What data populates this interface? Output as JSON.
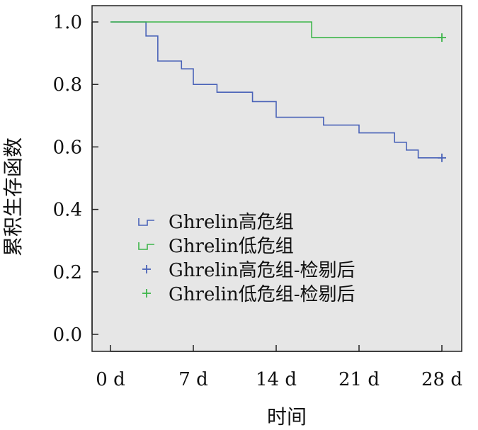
{
  "chart_data": {
    "type": "line",
    "xlabel": "时间",
    "ylabel": "累积生存函数",
    "xlim": [
      0,
      28
    ],
    "ylim": [
      0.0,
      1.0
    ],
    "x_ticks": [
      {
        "value": 0,
        "label": "0 d"
      },
      {
        "value": 7,
        "label": "7 d"
      },
      {
        "value": 14,
        "label": "14 d"
      },
      {
        "value": 21,
        "label": "21 d"
      },
      {
        "value": 28,
        "label": "28 d"
      }
    ],
    "y_ticks": [
      {
        "value": 0.0,
        "label": "0.0"
      },
      {
        "value": 0.2,
        "label": "0.2"
      },
      {
        "value": 0.4,
        "label": "0.4"
      },
      {
        "value": 0.6,
        "label": "0.6"
      },
      {
        "value": 0.8,
        "label": "0.8"
      },
      {
        "value": 1.0,
        "label": "1.0"
      }
    ],
    "grid": false,
    "legend_position": "center-left",
    "series": [
      {
        "name": "Ghrelin高危组",
        "style": "step",
        "color": "#4a63b8",
        "x": [
          0,
          3,
          4,
          6,
          7,
          9,
          12,
          14,
          18,
          21,
          24,
          25,
          26,
          28
        ],
        "y": [
          1.0,
          0.955,
          0.875,
          0.85,
          0.8,
          0.775,
          0.745,
          0.695,
          0.67,
          0.645,
          0.615,
          0.59,
          0.565,
          0.565
        ]
      },
      {
        "name": "Ghrelin低危组",
        "style": "step",
        "color": "#3db54a",
        "x": [
          0,
          17,
          28
        ],
        "y": [
          1.0,
          0.95,
          0.95
        ]
      },
      {
        "name": "Ghrelin高危组-检剔后",
        "style": "censor",
        "color": "#4a63b8",
        "x": [
          28
        ],
        "y": [
          0.565
        ]
      },
      {
        "name": "Ghrelin低危组-检剔后",
        "style": "censor",
        "color": "#3db54a",
        "x": [
          28
        ],
        "y": [
          0.95
        ]
      }
    ],
    "plot_background": "#e6e6e6"
  }
}
